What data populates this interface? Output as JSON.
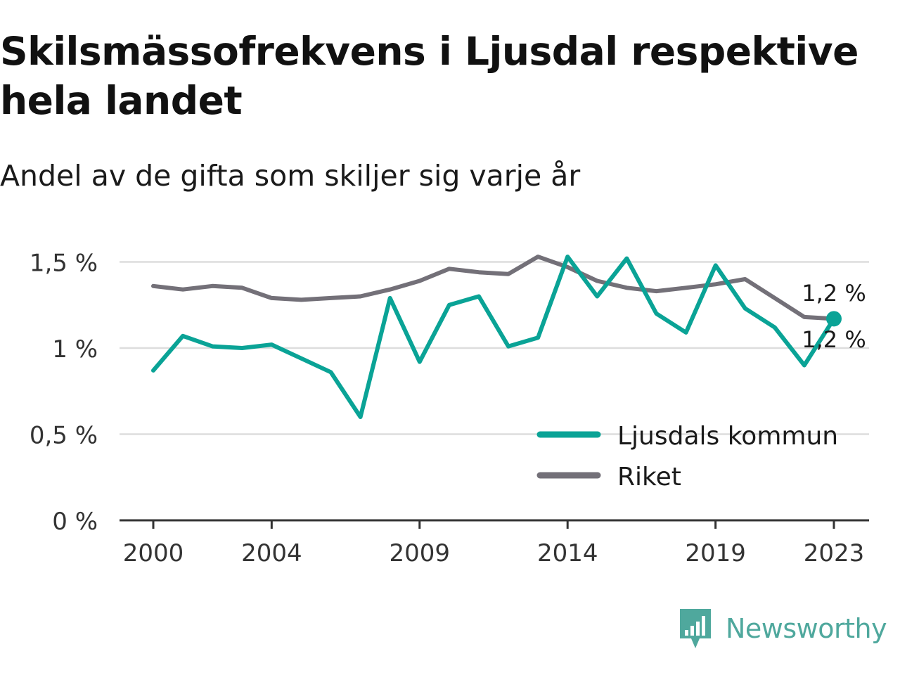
{
  "title": "Skilsmässofrekvens i Ljusdal respektive hela landet",
  "subtitle": "Andel av de gifta som skiljer sig varje år",
  "brand": {
    "name": "Newsworthy",
    "icon": "newsworthy-logo-icon"
  },
  "colors": {
    "ljusdal": "#0aa396",
    "riket": "#737078",
    "grid": "#dddddd",
    "axis": "#333333",
    "brand": "#4fa89d"
  },
  "chart_data": {
    "type": "line",
    "x": [
      2000,
      2001,
      2002,
      2003,
      2004,
      2005,
      2006,
      2007,
      2008,
      2009,
      2010,
      2011,
      2012,
      2013,
      2014,
      2015,
      2016,
      2017,
      2018,
      2019,
      2020,
      2021,
      2022,
      2023
    ],
    "series": [
      {
        "name": "Ljusdals kommun",
        "key": "ljusdal",
        "values": [
          0.87,
          1.07,
          1.01,
          1.0,
          1.02,
          0.94,
          0.86,
          0.6,
          1.29,
          0.92,
          1.25,
          1.3,
          1.01,
          1.06,
          1.53,
          1.3,
          1.52,
          1.2,
          1.09,
          1.48,
          1.23,
          1.12,
          0.9,
          1.17
        ]
      },
      {
        "name": "Riket",
        "key": "riket",
        "values": [
          1.36,
          1.34,
          1.36,
          1.35,
          1.29,
          1.28,
          1.29,
          1.3,
          1.34,
          1.39,
          1.46,
          1.44,
          1.43,
          1.53,
          1.47,
          1.39,
          1.35,
          1.33,
          1.35,
          1.37,
          1.4,
          1.29,
          1.18,
          1.17
        ]
      }
    ],
    "y_ticks": [
      {
        "value": 0,
        "label": "0 %"
      },
      {
        "value": 0.5,
        "label": "0,5 %"
      },
      {
        "value": 1,
        "label": "1 %"
      },
      {
        "value": 1.5,
        "label": "1,5 %"
      }
    ],
    "x_ticks": [
      {
        "value": 2000,
        "label": "2000"
      },
      {
        "value": 2004,
        "label": "2004"
      },
      {
        "value": 2009,
        "label": "2009"
      },
      {
        "value": 2014,
        "label": "2014"
      },
      {
        "value": 2019,
        "label": "2019"
      },
      {
        "value": 2023,
        "label": "2023"
      }
    ],
    "end_labels": {
      "riket": "1,2 %",
      "ljusdal": "1,2 %"
    },
    "ylim": [
      0,
      1.6
    ],
    "xlim": [
      2000,
      2023
    ],
    "grid": true,
    "legend_position": "bottom-right"
  }
}
